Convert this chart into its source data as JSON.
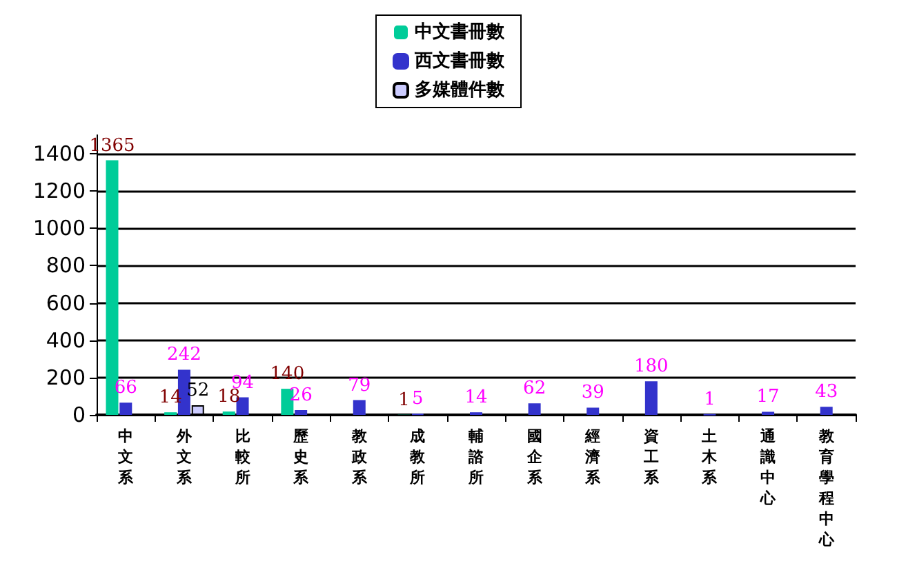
{
  "chart_data": {
    "type": "bar",
    "categories": [
      "中文系",
      "外文系",
      "比較所",
      "歷史系",
      "教政系",
      "成教所",
      "輔諮所",
      "國企系",
      "經濟系",
      "資工系",
      "土木系",
      "通識中心",
      "教育學程中心"
    ],
    "series": [
      {
        "name": "中文書冊數",
        "color": "#00cc99",
        "values": [
          1365,
          14,
          18,
          140,
          null,
          1,
          null,
          null,
          null,
          null,
          null,
          null,
          null
        ]
      },
      {
        "name": "西文書冊數",
        "color": "#3333cc",
        "values": [
          66,
          242,
          94,
          26,
          79,
          5,
          14,
          62,
          39,
          180,
          1,
          17,
          43
        ]
      },
      {
        "name": "多媒體件數",
        "color": "#ccccff",
        "values": [
          null,
          52,
          null,
          null,
          null,
          null,
          null,
          null,
          null,
          null,
          null,
          null,
          null
        ]
      }
    ],
    "ylim": [
      0,
      1500
    ],
    "yticks": [
      0,
      200,
      400,
      600,
      800,
      1000,
      1200,
      1400
    ],
    "grid": "y",
    "legend": "top",
    "data_labels": true
  }
}
